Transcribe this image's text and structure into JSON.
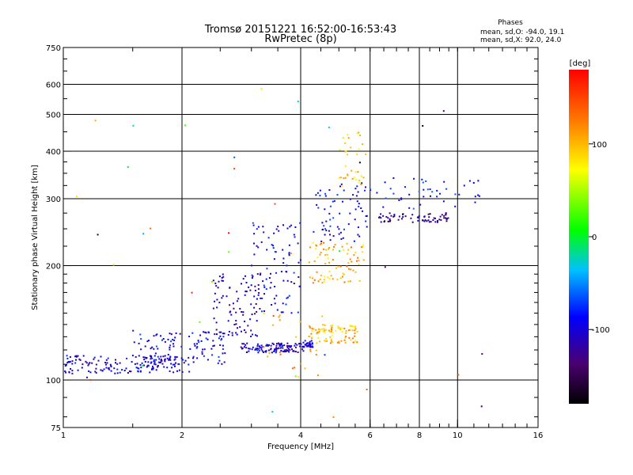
{
  "chart_data": {
    "type": "scatter",
    "title_line1": "Tromsø 20151221 16:52:00-16:53:43",
    "title_line2": "RwPretec (8p)",
    "stats_header": "Phases",
    "stats_o": "mean, sd,O: -94.0, 19.1",
    "stats_x": "mean, sd,X:  92.0, 24.0",
    "xlabel": "Frequency [MHz]",
    "ylabel": "Stationary phase Virtual Height [km]",
    "xscale": "log",
    "yscale": "log",
    "xlim": [
      1,
      16
    ],
    "ylim": [
      75,
      750
    ],
    "xticks": [
      1,
      2,
      4,
      6,
      8,
      10,
      16
    ],
    "yticks": [
      75,
      100,
      200,
      300,
      400,
      500,
      600,
      750
    ],
    "xgrid": [
      2,
      4,
      6,
      8,
      10
    ],
    "ygrid": [
      100,
      200,
      300,
      400,
      500,
      600
    ],
    "colorbar": {
      "label": "[deg]",
      "range": [
        -180,
        180
      ],
      "ticks": [
        100,
        0,
        -100
      ]
    },
    "point_clusters": [
      {
        "x_range": [
          1.0,
          2.1
        ],
        "y_range": [
          104,
          116
        ],
        "phase_deg": -100,
        "count": 160
      },
      {
        "x_range": [
          1.5,
          2.6
        ],
        "y_range": [
          110,
          135
        ],
        "phase_deg": -95,
        "count": 110
      },
      {
        "x_range": [
          2.4,
          3.2
        ],
        "y_range": [
          130,
          190
        ],
        "phase_deg": -110,
        "count": 90
      },
      {
        "x_range": [
          2.8,
          4.1
        ],
        "y_range": [
          118,
          125
        ],
        "phase_deg": -105,
        "count": 110
      },
      {
        "x_range": [
          3.0,
          4.0
        ],
        "y_range": [
          150,
          260
        ],
        "phase_deg": -95,
        "count": 90
      },
      {
        "x_range": [
          4.0,
          4.3
        ],
        "y_range": [
          122,
          127
        ],
        "phase_deg": -100,
        "count": 30
      },
      {
        "x_range": [
          4.2,
          5.6
        ],
        "y_range": [
          125,
          140
        ],
        "phase_deg": 100,
        "count": 90
      },
      {
        "x_range": [
          4.2,
          5.8
        ],
        "y_range": [
          180,
          230
        ],
        "phase_deg": 105,
        "count": 80
      },
      {
        "x_range": [
          4.3,
          5.9
        ],
        "y_range": [
          230,
          330
        ],
        "phase_deg": -90,
        "count": 70
      },
      {
        "x_range": [
          5.0,
          5.9
        ],
        "y_range": [
          320,
          450
        ],
        "phase_deg": 90,
        "count": 35
      },
      {
        "x_range": [
          6.3,
          9.5
        ],
        "y_range": [
          260,
          275
        ],
        "phase_deg": -130,
        "count": 70
      },
      {
        "x_range": [
          6.0,
          11.5
        ],
        "y_range": [
          280,
          340
        ],
        "phase_deg": -80,
        "count": 45
      },
      {
        "x_range": [
          3.2,
          4.6
        ],
        "y_range": [
          100,
          150
        ],
        "phase_deg": 110,
        "count": 25
      },
      {
        "x_range": [
          1.0,
          12.0
        ],
        "y_range": [
          78,
          600
        ],
        "phase_deg": 0,
        "count": 40
      }
    ]
  }
}
